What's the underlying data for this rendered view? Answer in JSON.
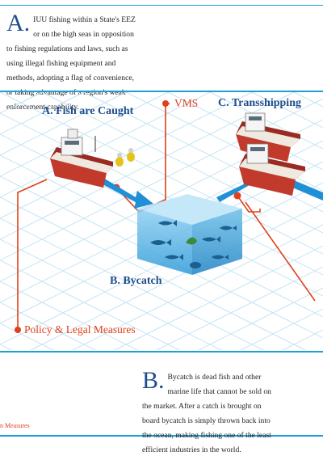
{
  "intro": {
    "letter": "A.",
    "text": "IUU fishing within a State's EEZ or on the high seas in opposition to fishing regulations and laws, such as using illegal fishing equipment and methods, adopting a flag of convenience, or taking advantage of a region's weak enforcement capability."
  },
  "stages": {
    "a": "A. Fish are Caught",
    "b": "B. Bycatch",
    "c": "C. Transshipping"
  },
  "callouts": {
    "vms": "VMS",
    "policy": "Policy & Legal Measures"
  },
  "bycatch_note": {
    "letter": "B.",
    "text": "Bycatch is dead fish and other marine life that cannot be sold on the market. After a catch is brought on board bycatch is simply thrown back into the ocean, making fishing one of the least efficient industries in the world."
  },
  "footer": {
    "note": "n Measures"
  },
  "colors": {
    "rule": "#1f9fd6",
    "accent_red": "#e0401a",
    "stage_blue": "#1f4e8c",
    "grid": "#bfe3f3"
  }
}
